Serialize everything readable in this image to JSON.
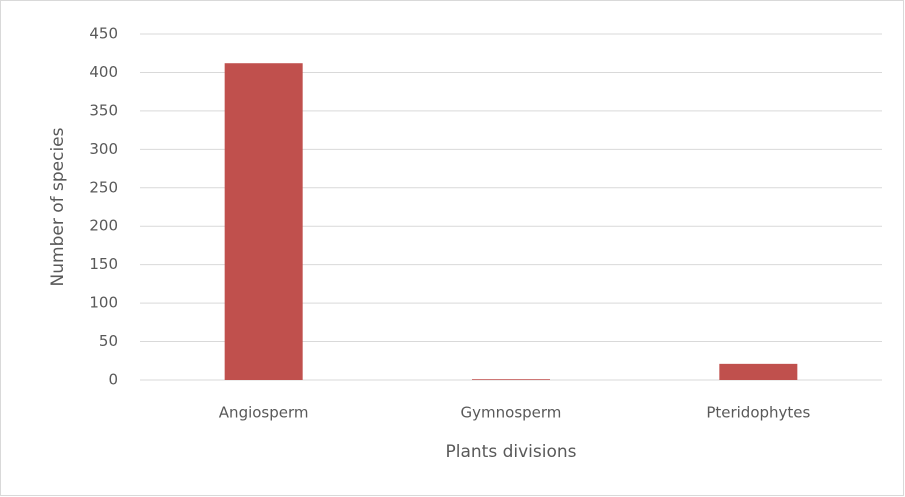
{
  "chart_data": {
    "type": "bar",
    "x_label": "Plants divisions",
    "y_label": "Number of species",
    "categories": [
      "Angiosperm",
      "Gymnosperm",
      "Pteridophytes"
    ],
    "values": [
      412,
      1,
      21
    ],
    "color": "#c0504d",
    "ylim": [
      0,
      450
    ],
    "yticks": [
      0,
      50,
      100,
      150,
      200,
      250,
      300,
      350,
      400,
      450
    ],
    "grid": true
  }
}
